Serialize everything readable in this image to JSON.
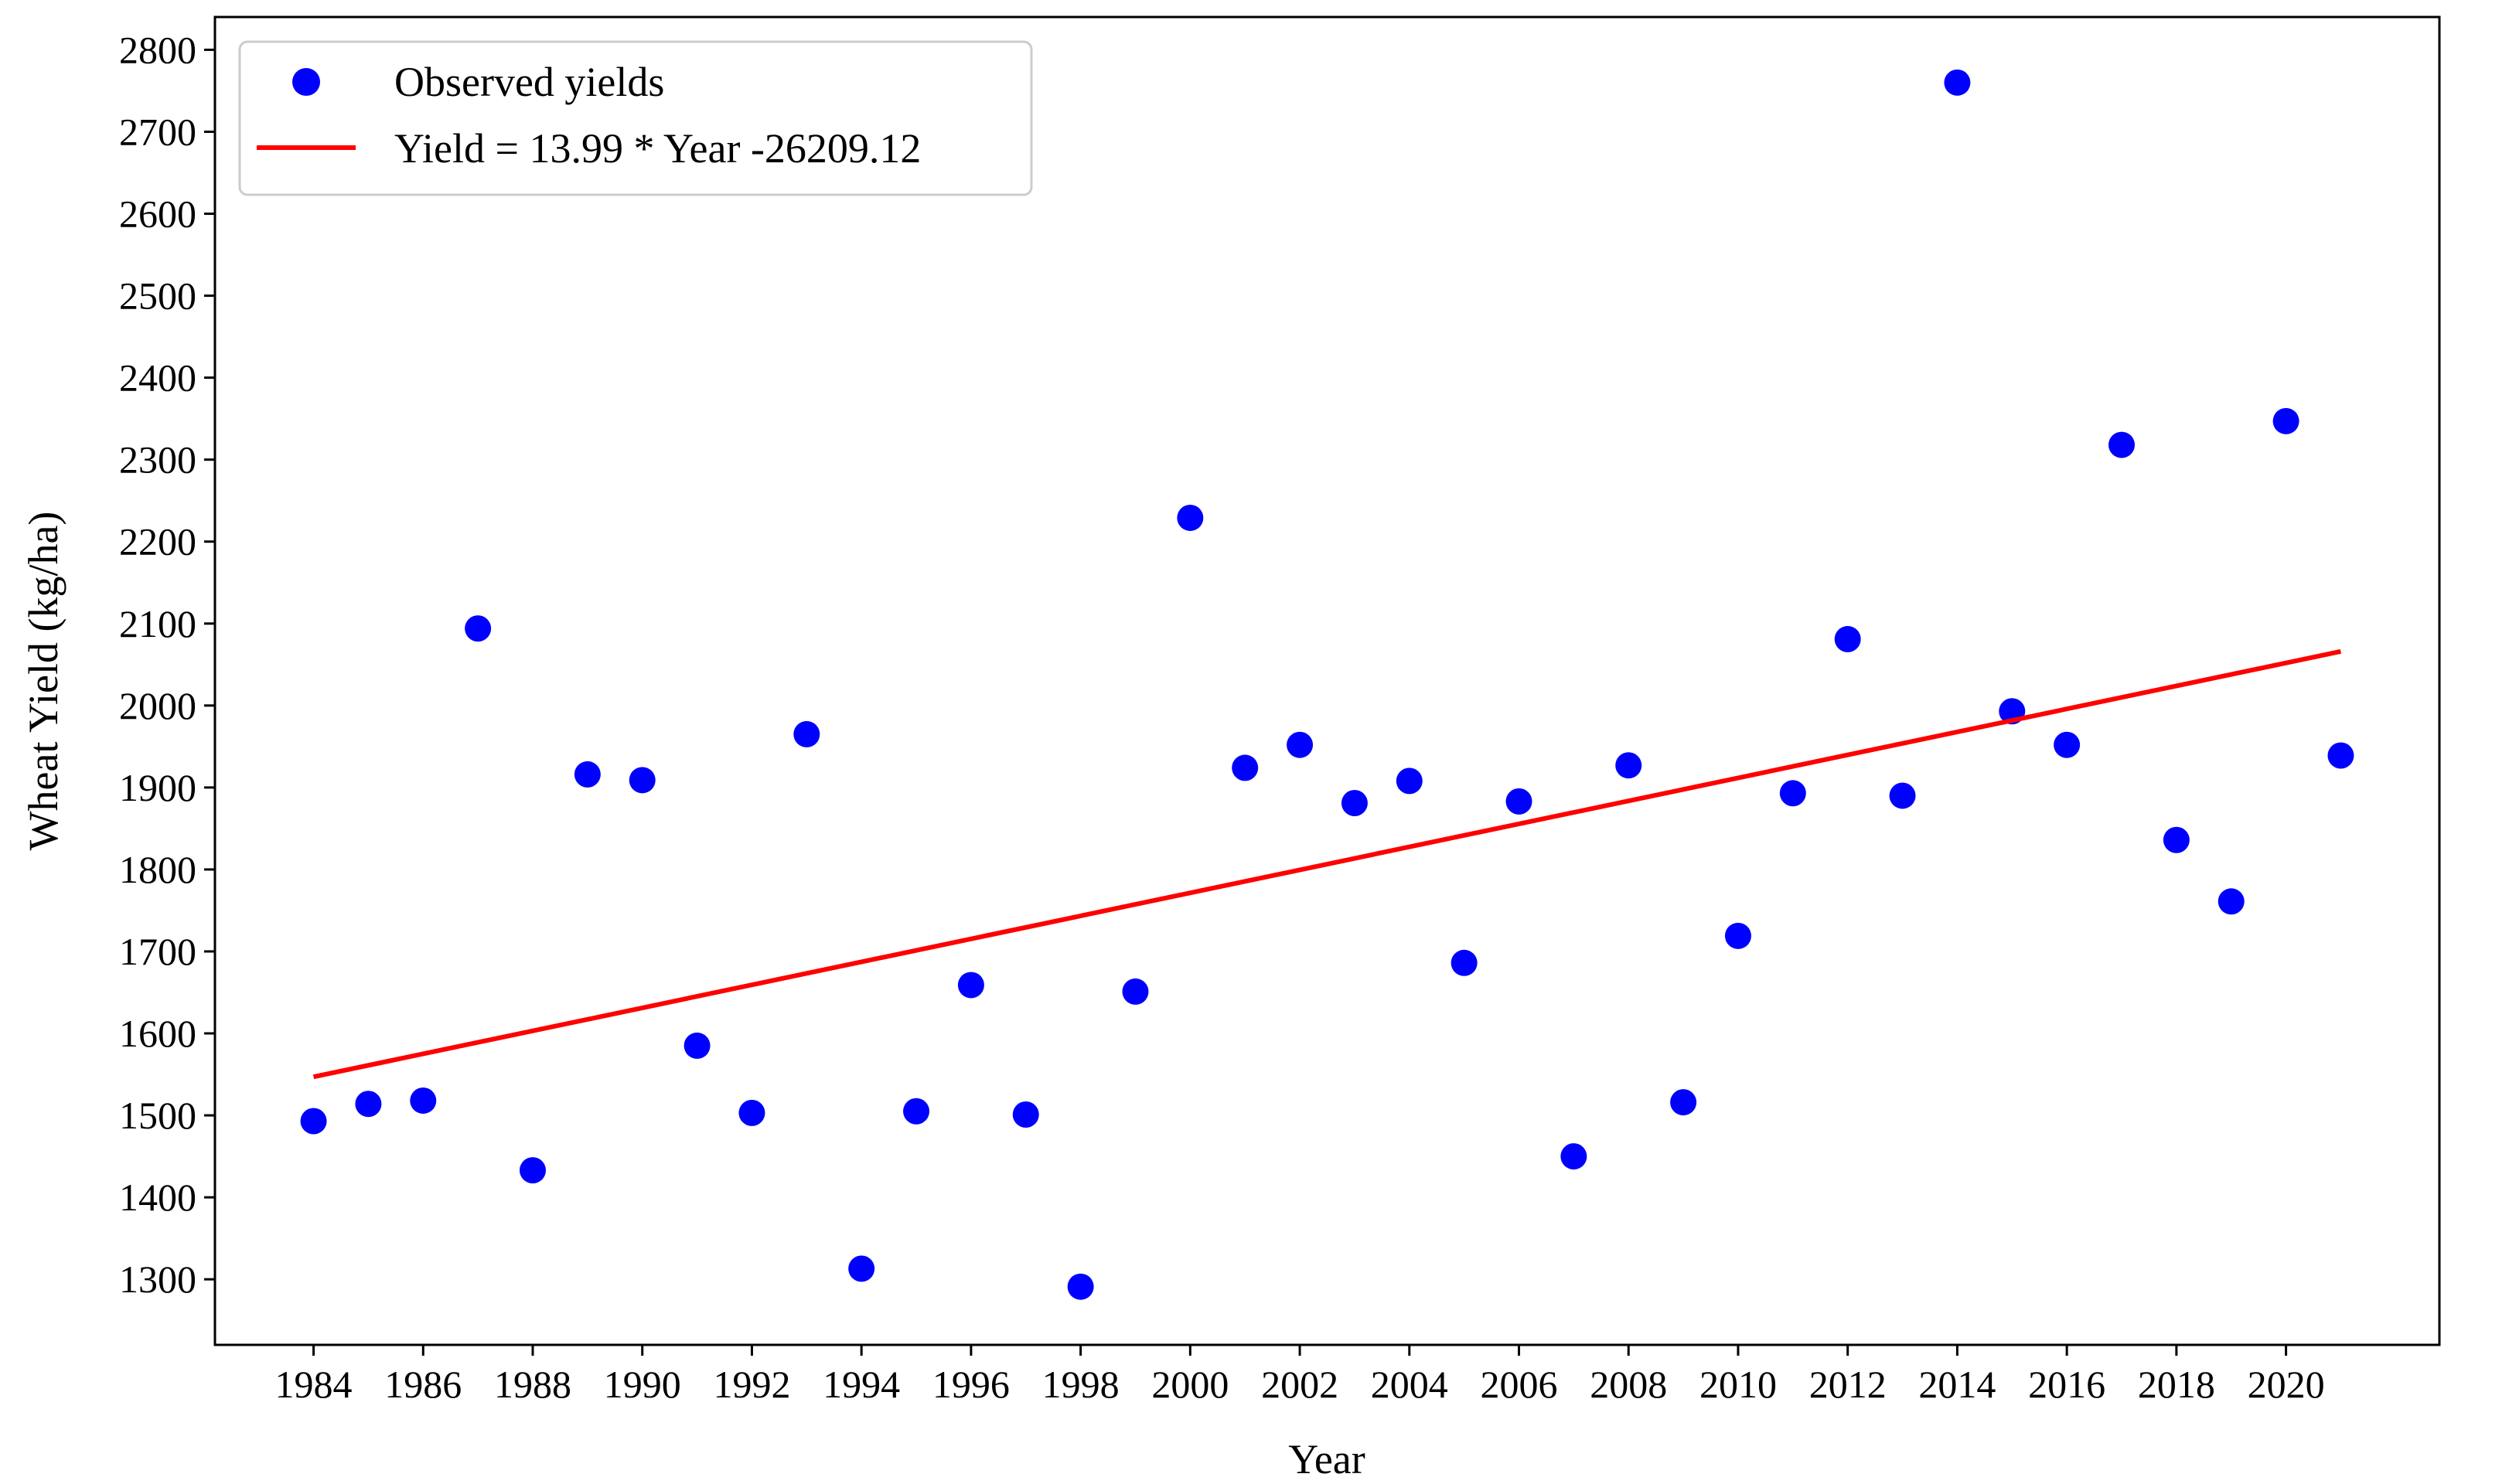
{
  "chart_data": {
    "type": "scatter",
    "title": "",
    "xlabel": "Year",
    "ylabel": "Wheat Yield (kg/ha)",
    "xlim": [
      1982.2,
      2022.8
    ],
    "ylim": [
      1220,
      2840
    ],
    "xticks": [
      1984,
      1986,
      1988,
      1990,
      1992,
      1994,
      1996,
      1998,
      2000,
      2002,
      2004,
      2006,
      2008,
      2010,
      2012,
      2014,
      2016,
      2018,
      2020
    ],
    "yticks": [
      1300,
      1400,
      1500,
      1600,
      1700,
      1800,
      1900,
      2000,
      2100,
      2200,
      2300,
      2400,
      2500,
      2600,
      2700,
      2800
    ],
    "grid": false,
    "legend_position": "top-left",
    "series": [
      {
        "name": "Observed yields",
        "kind": "scatter",
        "color": "#0000ff",
        "x": [
          1984,
          1985,
          1986,
          1987,
          1988,
          1989,
          1990,
          1991,
          1992,
          1993,
          1994,
          1995,
          1996,
          1997,
          1998,
          1999,
          2000,
          2001,
          2002,
          2003,
          2004,
          2005,
          2006,
          2007,
          2008,
          2009,
          2010,
          2011,
          2012,
          2013,
          2014,
          2015,
          2016,
          2017,
          2018,
          2019,
          2020,
          2021
        ],
        "y": [
          1493,
          1514,
          1518,
          2094,
          1433,
          1916,
          1909,
          1585,
          1503,
          1965,
          1313,
          1505,
          1659,
          1501,
          1291,
          1651,
          2229,
          1924,
          1952,
          1881,
          1908,
          1686,
          1883,
          1450,
          1927,
          1516,
          1719,
          1893,
          2081,
          1890,
          2760,
          1993,
          1952,
          2318,
          1836,
          1761,
          2347,
          1939
        ]
      },
      {
        "name": "Yield = 13.99 * Year -26209.12",
        "kind": "line",
        "color": "#ff0000",
        "x": [
          1984,
          2021
        ],
        "y": [
          1547,
          2066
        ]
      }
    ]
  }
}
